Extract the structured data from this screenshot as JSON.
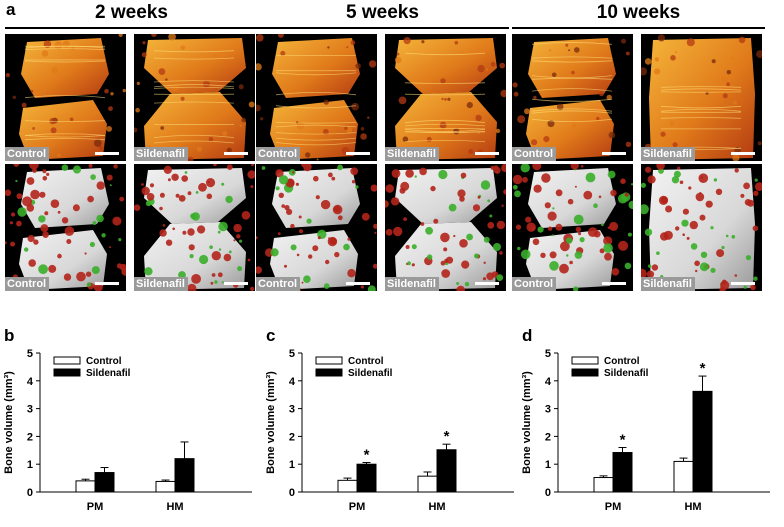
{
  "panel_a": {
    "letter": "a",
    "timepoints": [
      {
        "title": "2 weeks",
        "tiles": [
          {
            "label": "Control",
            "render": "ct",
            "shape": "gap"
          },
          {
            "label": "Sildenafil",
            "render": "ct",
            "shape": "neck"
          },
          {
            "label": "Control",
            "render": "graft",
            "shape": "gap"
          },
          {
            "label": "Sildenafil",
            "render": "graft",
            "shape": "neck"
          }
        ]
      },
      {
        "title": "5 weeks",
        "tiles": [
          {
            "label": "Control",
            "render": "ct",
            "shape": "gap"
          },
          {
            "label": "Sildenafil",
            "render": "ct",
            "shape": "neck"
          },
          {
            "label": "Control",
            "render": "graft",
            "shape": "gap"
          },
          {
            "label": "Sildenafil",
            "render": "graft",
            "shape": "neck"
          }
        ]
      },
      {
        "title": "10 weeks",
        "tiles": [
          {
            "label": "Control",
            "render": "ct",
            "shape": "gap"
          },
          {
            "label": "Sildenafil",
            "render": "ct",
            "shape": "full"
          },
          {
            "label": "Control",
            "render": "graft",
            "shape": "gap"
          },
          {
            "label": "Sildenafil",
            "render": "graft",
            "shape": "full"
          }
        ]
      }
    ],
    "colors": {
      "ct_bright": "#f5b53a",
      "ct_mid": "#e07a1a",
      "ct_dark": "#b33a12",
      "graft_white": "#d8d8d8",
      "graft_red": "#b3231a",
      "graft_green": "#3aae2a"
    }
  },
  "chart_data": [
    {
      "letter": "b",
      "type": "bar",
      "ylabel": "Bone volume (mm³)",
      "ylim": [
        0,
        5
      ],
      "yticks": [
        "0",
        "1",
        "2",
        "3",
        "4",
        "5"
      ],
      "categories": [
        "PM",
        "HM"
      ],
      "legend_position": "top-left",
      "series": [
        {
          "name": "Control",
          "color": "#ffffff",
          "values": [
            0.4,
            0.38
          ],
          "errors": [
            0.06,
            0.05
          ]
        },
        {
          "name": "Sildenafil",
          "color": "#000000",
          "values": [
            0.7,
            1.2
          ],
          "errors": [
            0.18,
            0.6
          ]
        }
      ],
      "significance": [
        "",
        "",
        "",
        ""
      ]
    },
    {
      "letter": "c",
      "type": "bar",
      "ylabel": "Bone volume (mm³)",
      "ylim": [
        0,
        5
      ],
      "yticks": [
        "0",
        "1",
        "2",
        "3",
        "4",
        "5"
      ],
      "categories": [
        "PM",
        "HM"
      ],
      "legend_position": "top-left",
      "series": [
        {
          "name": "Control",
          "color": "#ffffff",
          "values": [
            0.42,
            0.57
          ],
          "errors": [
            0.08,
            0.15
          ]
        },
        {
          "name": "Sildenafil",
          "color": "#000000",
          "values": [
            1.0,
            1.52
          ],
          "errors": [
            0.06,
            0.2
          ]
        }
      ],
      "significance": [
        "",
        "*",
        "",
        "*"
      ]
    },
    {
      "letter": "d",
      "type": "bar",
      "ylabel": "Bone volume (mm³)",
      "ylim": [
        0,
        5
      ],
      "yticks": [
        "0",
        "1",
        "2",
        "3",
        "4",
        "5"
      ],
      "categories": [
        "PM",
        "HM"
      ],
      "legend_position": "top-left",
      "series": [
        {
          "name": "Control",
          "color": "#ffffff",
          "values": [
            0.52,
            1.1
          ],
          "errors": [
            0.06,
            0.12
          ]
        },
        {
          "name": "Sildenafil",
          "color": "#000000",
          "values": [
            1.42,
            3.62
          ],
          "errors": [
            0.18,
            0.55
          ]
        }
      ],
      "significance": [
        "",
        "*",
        "",
        "*"
      ]
    }
  ]
}
